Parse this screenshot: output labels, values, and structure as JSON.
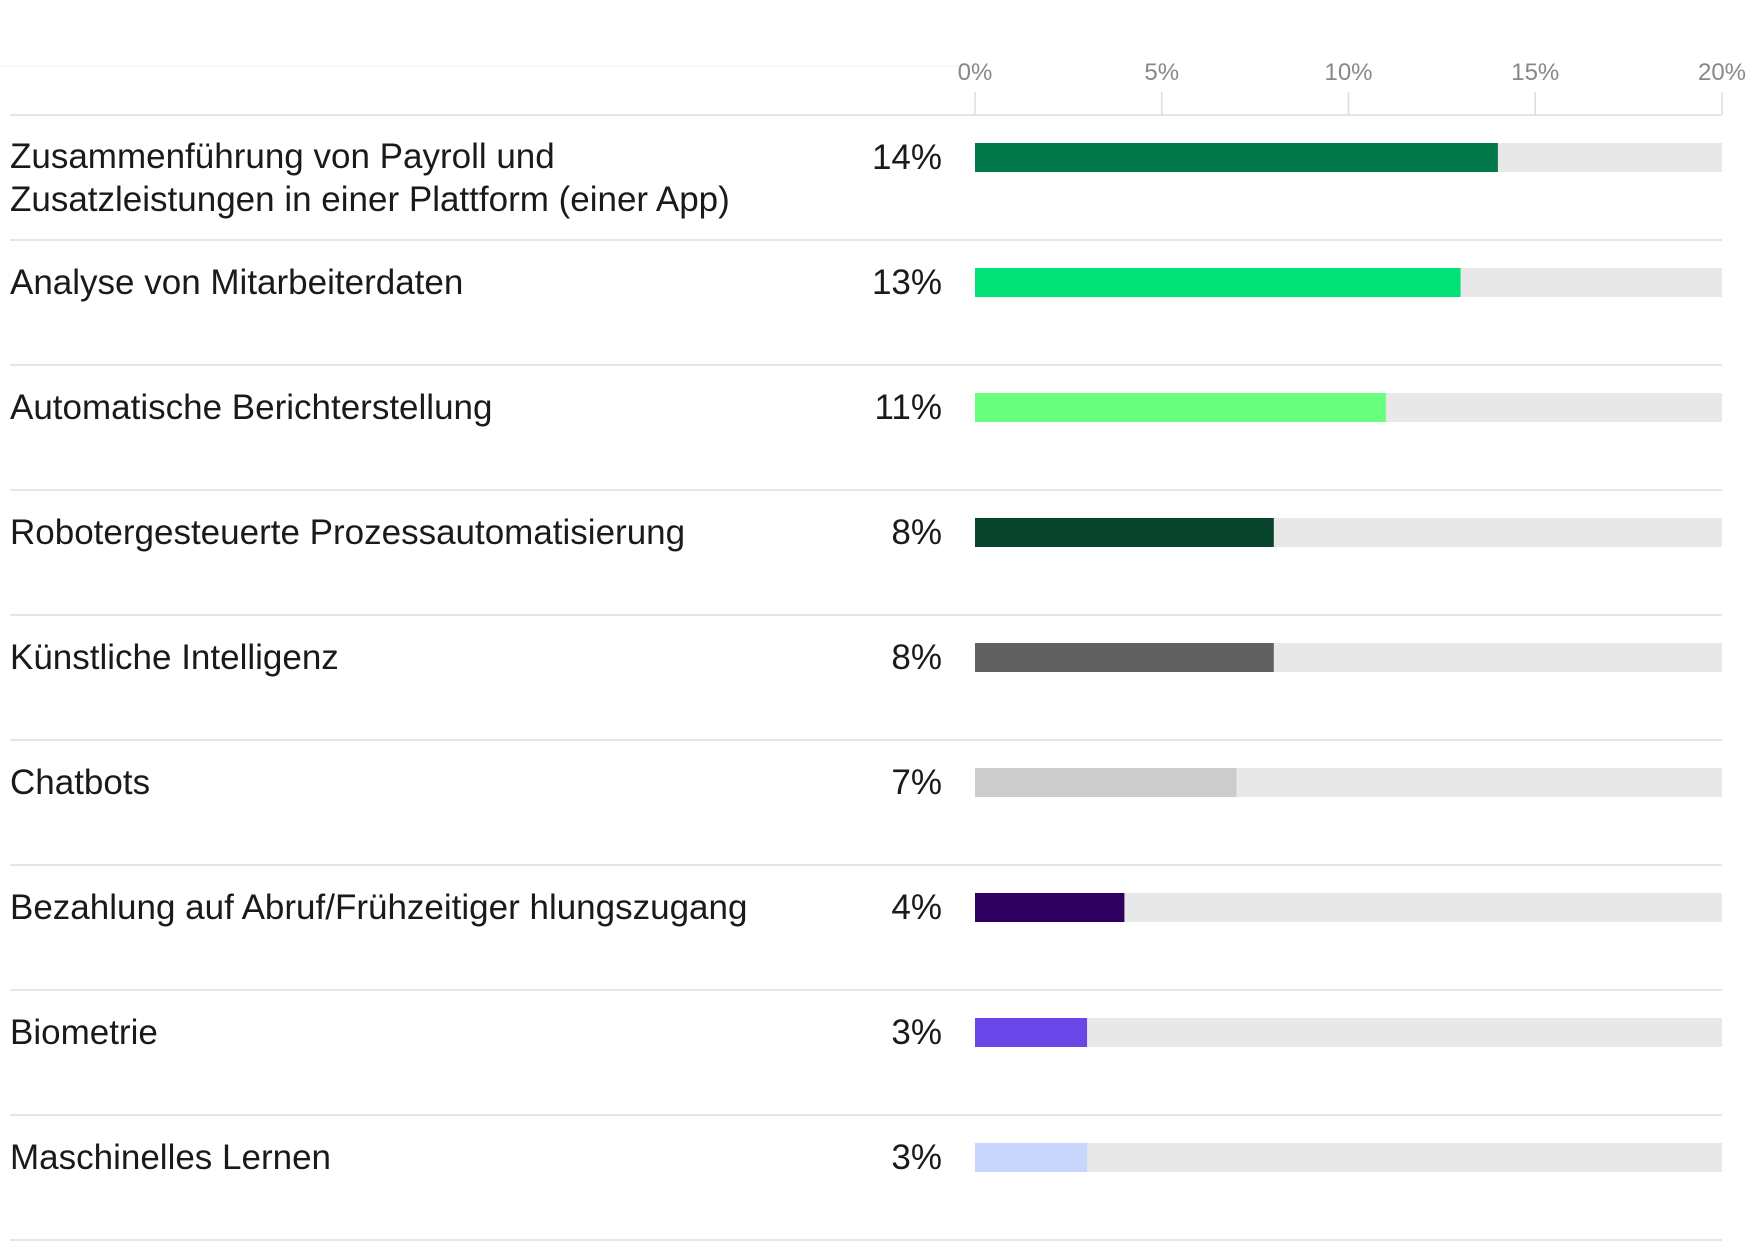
{
  "chart_data": {
    "type": "bar",
    "orientation": "horizontal",
    "title": "",
    "xlabel": "",
    "ylabel": "",
    "xlim": [
      0,
      20
    ],
    "ticks": [
      0,
      5,
      10,
      15,
      20
    ],
    "tick_labels": [
      "0%",
      "5%",
      "10%",
      "15%",
      "20%"
    ],
    "grid": true,
    "legend": "none",
    "categories": [
      "Zusammenführung von Payroll und Zusatzleistungen in einer Plattform (einer App)",
      "Analyse von Mitarbeiterdaten",
      "Automatische Berichterstellung",
      "Robotergesteuerte Prozessautomatisierung",
      "Künstliche Intelligenz",
      "Chatbots",
      "Bezahlung auf Abruf/Frühzeitiger hlungszugang",
      "Biometrie",
      "Maschinelles Lernen"
    ],
    "category_lines": [
      [
        "Zusammenführung von Payroll und",
        "Zusatzleistungen in einer Plattform (einer App)"
      ],
      [
        "Analyse von Mitarbeiterdaten"
      ],
      [
        "Automatische Berichterstellung"
      ],
      [
        "Robotergesteuerte Prozessautomatisierung"
      ],
      [
        "Künstliche Intelligenz"
      ],
      [
        "Chatbots"
      ],
      [
        "Bezahlung auf Abruf/Frühzeitiger hlungszugang"
      ],
      [
        "Biometrie"
      ],
      [
        "Maschinelles Lernen"
      ]
    ],
    "values": [
      14,
      13,
      11,
      8,
      8,
      7,
      4,
      3,
      3
    ],
    "value_labels": [
      "14%",
      "13%",
      "11%",
      "8%",
      "8%",
      "7%",
      "4%",
      "3%",
      "3%"
    ],
    "bar_colors": [
      "#03784a",
      "#00e176",
      "#68ff7f",
      "#08432b",
      "#616161",
      "#cccccc",
      "#300060",
      "#6846e8",
      "#c8d5fd"
    ],
    "track_color": "#e8e8e9",
    "grid_color": "#dddddd",
    "tick_color": "#888888"
  }
}
